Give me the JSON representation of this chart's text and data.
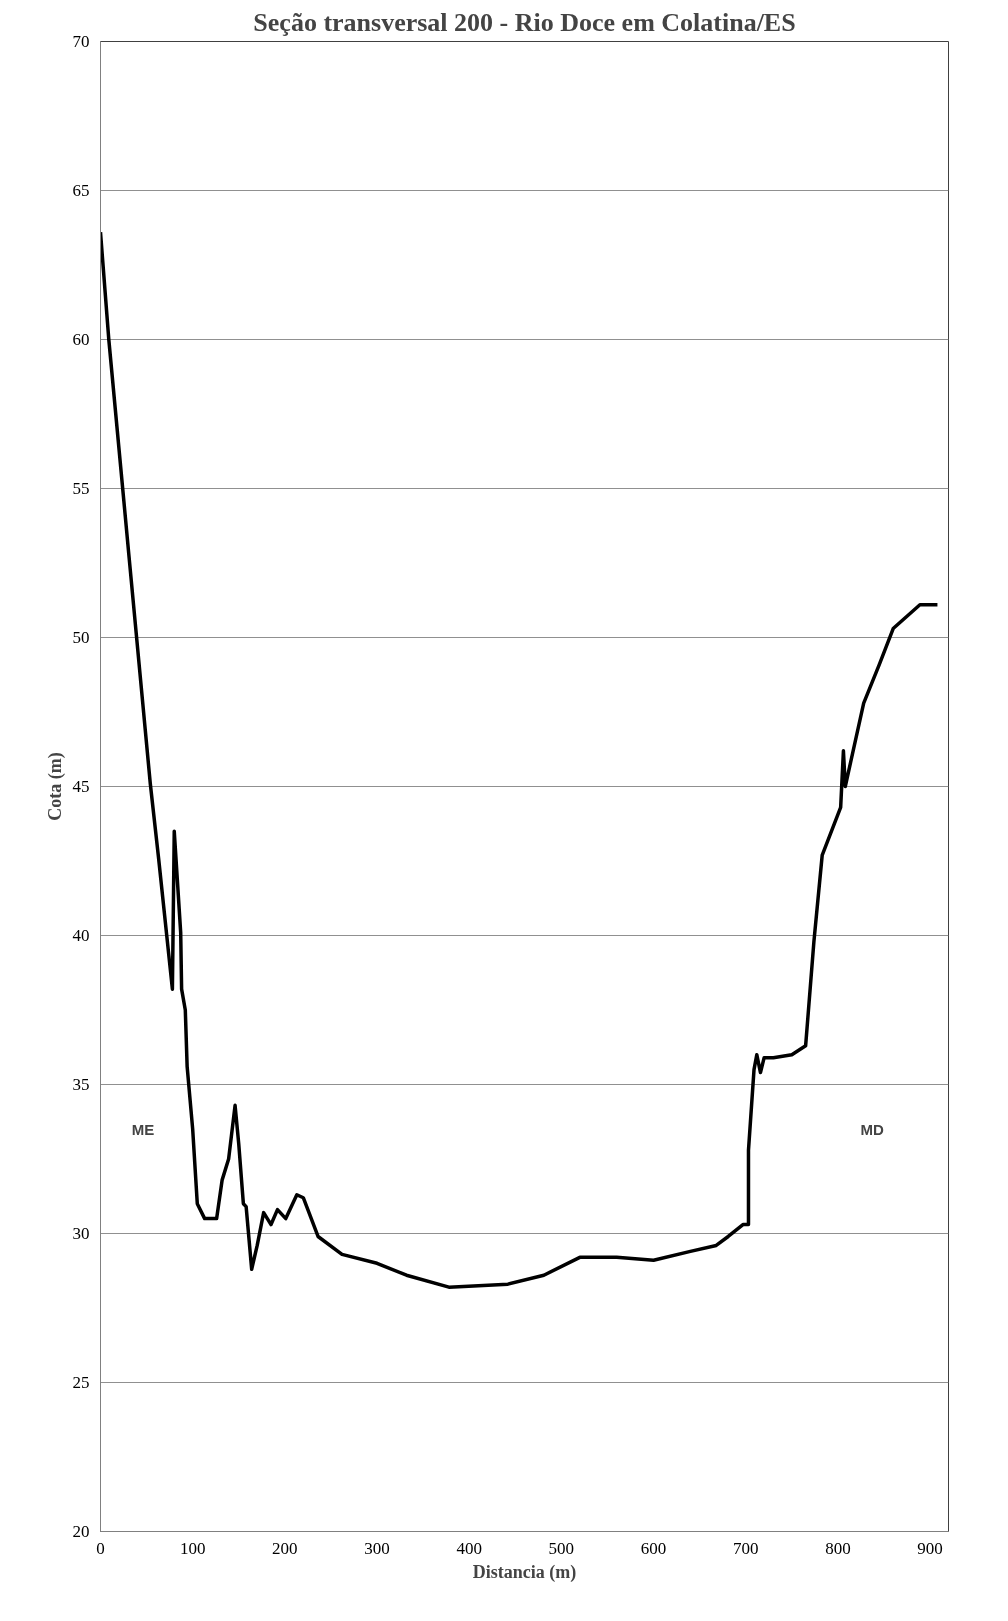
{
  "chart_data": {
    "type": "line",
    "title": "Seção transversal 200 - Rio Doce em Colatina/ES",
    "xlabel": "Distancia (m)",
    "ylabel": "Cota (m)",
    "x": [
      0,
      9,
      31,
      54,
      63,
      78,
      80,
      87,
      88,
      92,
      94,
      100,
      105,
      113,
      126,
      132,
      139,
      146,
      150,
      155,
      158,
      164,
      170,
      177,
      185,
      192,
      201,
      213,
      220,
      236,
      262,
      300,
      332,
      378,
      442,
      481,
      520,
      560,
      600,
      640,
      668,
      681,
      697,
      703,
      703,
      709,
      712,
      716,
      720,
      730,
      750,
      765,
      774,
      783,
      803,
      806,
      808,
      828,
      845,
      860,
      889,
      908
    ],
    "series": [
      {
        "color": "#000000",
        "values": [
          63.6,
          60.0,
          52.7,
          45.1,
          42.6,
          38.2,
          43.5,
          40.1,
          38.2,
          37.5,
          35.6,
          33.5,
          31.0,
          30.5,
          30.5,
          31.8,
          32.5,
          34.3,
          33.0,
          31.0,
          30.9,
          28.8,
          29.6,
          30.7,
          30.3,
          30.8,
          30.5,
          31.3,
          31.2,
          29.9,
          29.3,
          29.0,
          28.6,
          28.2,
          28.3,
          28.6,
          29.2,
          29.2,
          29.1,
          29.4,
          29.6,
          29.9,
          30.3,
          30.3,
          32.8,
          35.5,
          36.0,
          35.4,
          35.9,
          35.9,
          36.0,
          36.3,
          39.8,
          42.7,
          44.3,
          46.2,
          45.0,
          47.8,
          49.1,
          50.3,
          51.1,
          51.1
        ]
      }
    ],
    "xlim": [
      0,
      920
    ],
    "xticks": [
      0,
      100,
      200,
      300,
      400,
      500,
      600,
      700,
      800,
      900
    ],
    "ylim": [
      20,
      70
    ],
    "yticks": [
      20,
      25,
      30,
      35,
      40,
      45,
      50,
      55,
      60,
      65,
      70
    ],
    "grid": "y",
    "annotations": [
      "ME",
      "MD"
    ]
  }
}
